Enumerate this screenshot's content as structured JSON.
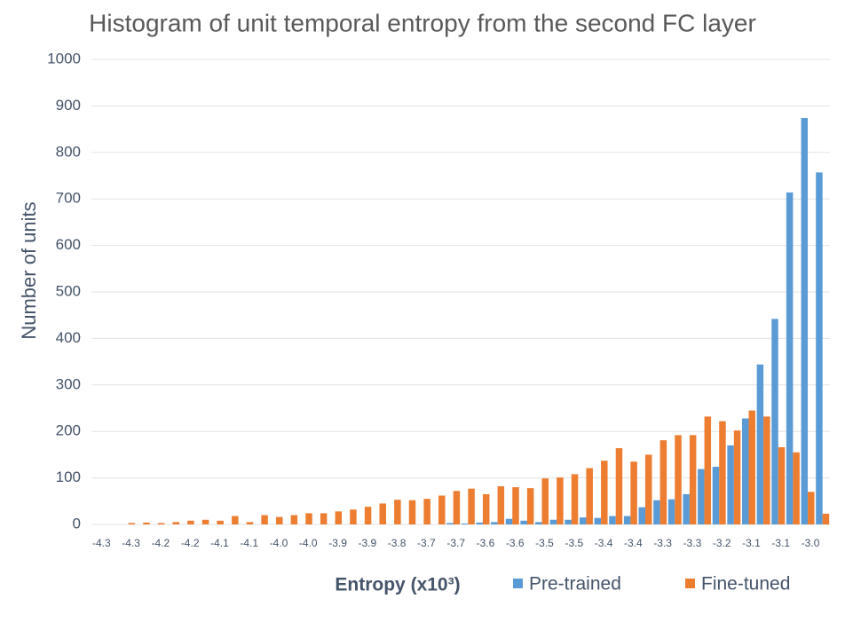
{
  "chart_data": {
    "type": "bar",
    "title": "Histogram of unit temporal entropy from the second FC layer",
    "xlabel": "Entropy (x10³)",
    "ylabel": "Number of units",
    "categories": [
      "-4.3",
      null,
      "-4.3",
      null,
      "-4.2",
      null,
      "-4.2",
      null,
      "-4.1",
      null,
      "-4.1",
      null,
      "-4.0",
      null,
      "-4.0",
      null,
      "-3.9",
      null,
      "-3.9",
      null,
      "-3.8",
      null,
      "-3.7",
      null,
      "-3.7",
      null,
      "-3.6",
      null,
      "-3.6",
      null,
      "-3.5",
      null,
      "-3.5",
      null,
      "-3.4",
      null,
      "-3.4",
      null,
      "-3.3",
      null,
      "-3.3",
      null,
      "-3.2",
      null,
      "-3.1",
      null,
      "-3.1",
      null,
      "-3.0",
      null
    ],
    "series": [
      {
        "name": "Pre-trained",
        "color": "#5b9bd5",
        "values": [
          0,
          0,
          0,
          0,
          0,
          0,
          0,
          0,
          0,
          0,
          0,
          0,
          0,
          0,
          0,
          0,
          0,
          0,
          0,
          0,
          0,
          0,
          0,
          0,
          3,
          2,
          4,
          5,
          12,
          8,
          5,
          10,
          10,
          15,
          14,
          18,
          18,
          37,
          52,
          54,
          65,
          119,
          124,
          170,
          228,
          344,
          442,
          714,
          874,
          757
        ]
      },
      {
        "name": "Fine-tuned",
        "color": "#ed7d31",
        "values": [
          0,
          0,
          3,
          4,
          3,
          5,
          8,
          10,
          8,
          18,
          5,
          20,
          16,
          20,
          24,
          24,
          28,
          32,
          38,
          45,
          53,
          52,
          55,
          62,
          72,
          77,
          65,
          82,
          80,
          78,
          99,
          101,
          108,
          121,
          137,
          164,
          135,
          150,
          181,
          192,
          192,
          232,
          222,
          202,
          245,
          232,
          166,
          155,
          70,
          23
        ]
      }
    ],
    "ylim": [
      0,
      1000
    ],
    "yticks": [
      0,
      100,
      200,
      300,
      400,
      500,
      600,
      700,
      800,
      900,
      1000
    ],
    "grid": true
  }
}
